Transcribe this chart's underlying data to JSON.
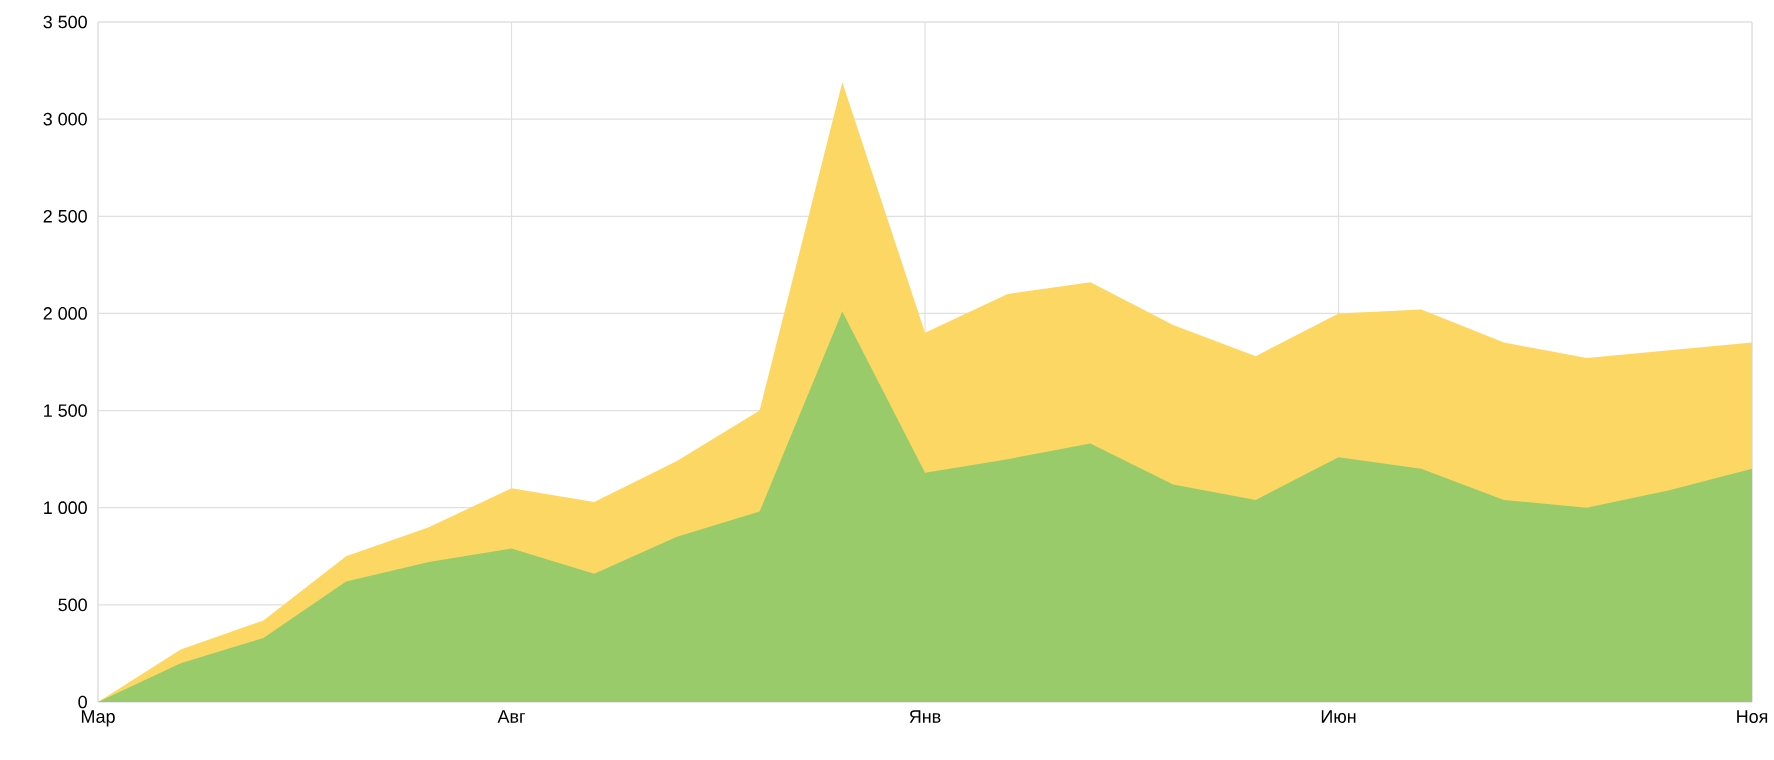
{
  "chart_data": {
    "type": "area",
    "categories": [
      "Мар",
      null,
      null,
      null,
      null,
      "Авг",
      null,
      null,
      null,
      null,
      "Янв",
      null,
      null,
      null,
      null,
      "Июн",
      null,
      null,
      null,
      null,
      "Ноя"
    ],
    "series": [
      {
        "color": "#fdd764",
        "values": [
          0,
          270,
          420,
          750,
          900,
          1100,
          1030,
          1240,
          1500,
          3190,
          1900,
          2100,
          2160,
          1940,
          1780,
          2000,
          2020,
          1850,
          1770,
          1810,
          1850
        ]
      },
      {
        "color": "#9acb6a",
        "values": [
          0,
          200,
          330,
          620,
          720,
          790,
          660,
          850,
          980,
          2010,
          1180,
          1250,
          1330,
          1120,
          1040,
          1260,
          1200,
          1040,
          1000,
          1090,
          1200
        ]
      }
    ],
    "ylim": [
      0,
      3500
    ],
    "yticks": [
      0,
      500,
      {
        "value": 1000,
        "label": "1 000"
      },
      {
        "value": 1500,
        "label": "1 500"
      },
      {
        "value": 2000,
        "label": "2 000"
      },
      {
        "value": 2500,
        "label": "2 500"
      },
      {
        "value": 3000,
        "label": "3 000"
      },
      {
        "value": 3500,
        "label": "3 500"
      }
    ],
    "grid": true
  }
}
